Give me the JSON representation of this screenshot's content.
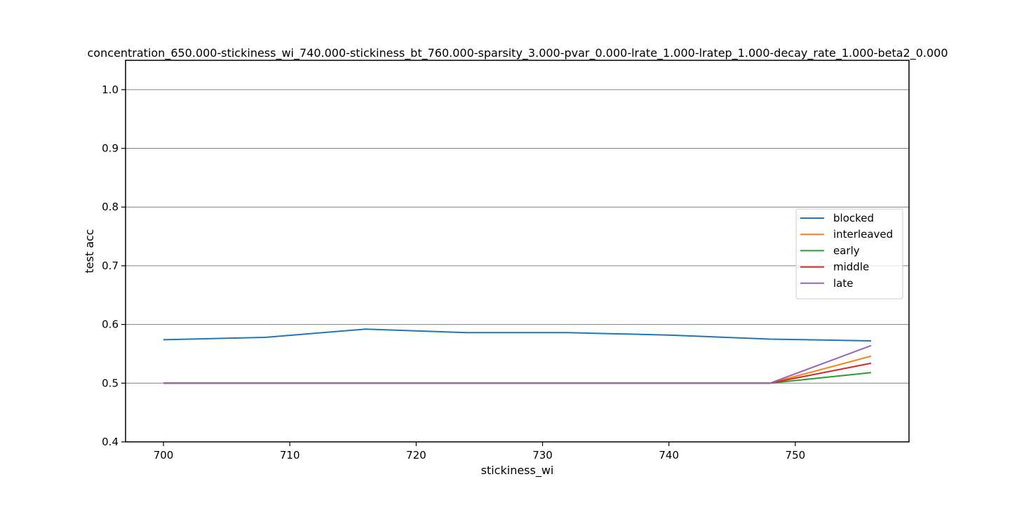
{
  "chart_data": {
    "type": "line",
    "title": "concentration_650.000-stickiness_wi_740.000-stickiness_bt_760.000-sparsity_3.000-pvar_0.000-lrate_1.000-lratep_1.000-decay_rate_1.000-beta2_0.000",
    "xlabel": "stickiness_wi",
    "ylabel": "test acc",
    "xlim": [
      697,
      759
    ],
    "ylim": [
      0.4,
      1.05
    ],
    "xticks": [
      700,
      710,
      720,
      730,
      740,
      750
    ],
    "xtick_labels": [
      "700",
      "710",
      "720",
      "730",
      "740",
      "750"
    ],
    "yticks": [
      0.4,
      0.5,
      0.6,
      0.7,
      0.8,
      0.9,
      1.0
    ],
    "ytick_labels": [
      "0.4",
      "0.5",
      "0.6",
      "0.7",
      "0.8",
      "0.9",
      "1.0"
    ],
    "grid": "horizontal",
    "legend_position": "center-right",
    "x": [
      700,
      708,
      716,
      724,
      732,
      740,
      748,
      756
    ],
    "series": [
      {
        "name": "blocked",
        "color": "#1f77b4",
        "values": [
          0.574,
          0.578,
          0.592,
          0.586,
          0.586,
          0.582,
          0.575,
          0.572
        ]
      },
      {
        "name": "interleaved",
        "color": "#ff7f0e",
        "values": [
          0.5,
          0.5,
          0.5,
          0.5,
          0.5,
          0.5,
          0.5,
          0.546
        ]
      },
      {
        "name": "early",
        "color": "#2ca02c",
        "values": [
          0.5,
          0.5,
          0.5,
          0.5,
          0.5,
          0.5,
          0.5,
          0.518
        ]
      },
      {
        "name": "middle",
        "color": "#d62728",
        "values": [
          0.5,
          0.5,
          0.5,
          0.5,
          0.5,
          0.5,
          0.5,
          0.534
        ]
      },
      {
        "name": "late",
        "color": "#9467bd",
        "values": [
          0.5,
          0.5,
          0.5,
          0.5,
          0.5,
          0.5,
          0.5,
          0.564
        ]
      }
    ]
  }
}
